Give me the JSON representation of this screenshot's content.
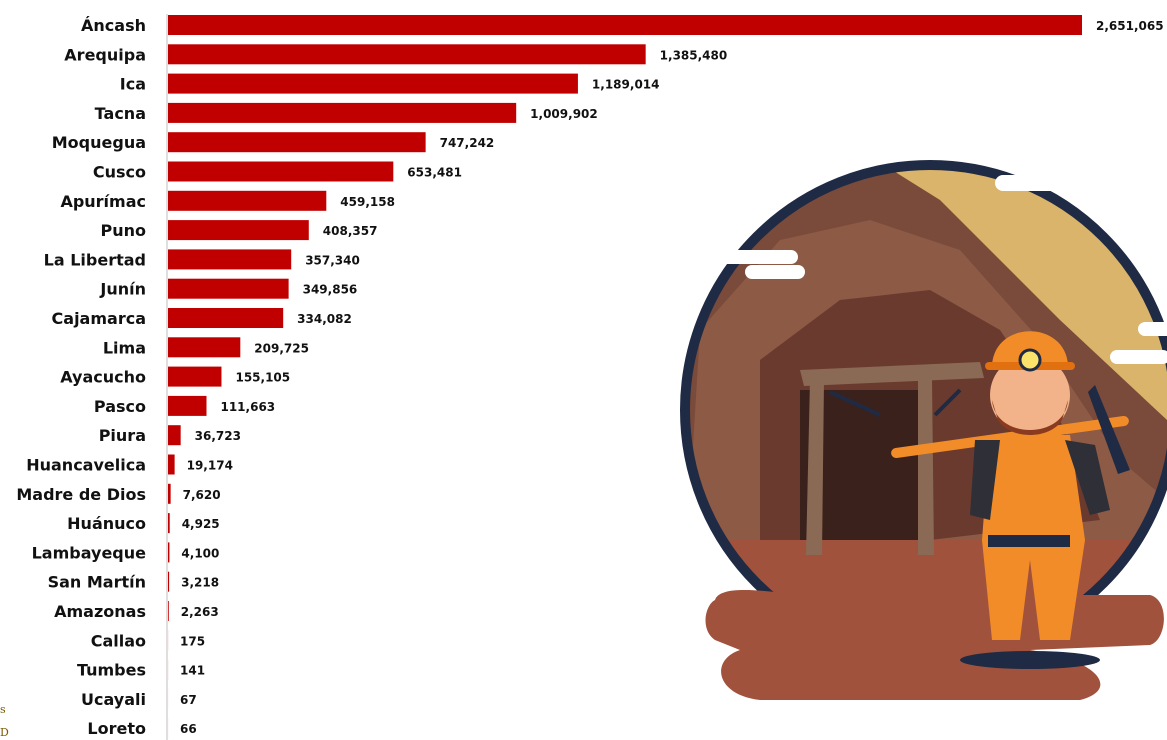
{
  "chart_data": {
    "type": "bar",
    "orientation": "horizontal",
    "categories": [
      "Áncash",
      "Arequipa",
      "Ica",
      "Tacna",
      "Moquegua",
      "Cusco",
      "Apurímac",
      "Puno",
      "La Libertad",
      "Junín",
      "Cajamarca",
      "Lima",
      "Ayacucho",
      "Pasco",
      "Piura",
      "Huancavelica",
      "Madre de Dios",
      "Huánuco",
      "Lambayeque",
      "San Martín",
      "Amazonas",
      "Callao",
      "Tumbes",
      "Ucayali",
      "Loreto"
    ],
    "values": [
      2651065,
      1385480,
      1189014,
      1009902,
      747242,
      653481,
      459158,
      408357,
      357340,
      349856,
      334082,
      209725,
      155105,
      111663,
      36723,
      19174,
      7620,
      4925,
      4100,
      3218,
      2263,
      175,
      141,
      67,
      66
    ],
    "value_labels": [
      "2,651,065",
      "1,385,480",
      "1,189,014",
      "1,009,902",
      "747,242",
      "653,481",
      "459,158",
      "408,357",
      "357,340",
      "349,856",
      "334,082",
      "209,725",
      "155,105",
      "111,663",
      "36,723",
      "19,174",
      "7,620",
      "4,925",
      "4,100",
      "3,218",
      "2,263",
      "175",
      "141",
      "67",
      "66"
    ],
    "xlim": [
      0,
      2651065
    ],
    "grid": false,
    "colors": {
      "bar": "#c00000",
      "axis": "#bfbfbf"
    }
  },
  "side_letters": [
    "s",
    "D"
  ],
  "illustration": {
    "subject": "miner-with-pickaxe-at-mine-entrance",
    "colors": {
      "sky": "#d9b46a",
      "rock": "#7a4a3a",
      "ground": "#a0523d",
      "border": "#1f2a44",
      "vest": "#f28c28"
    }
  }
}
